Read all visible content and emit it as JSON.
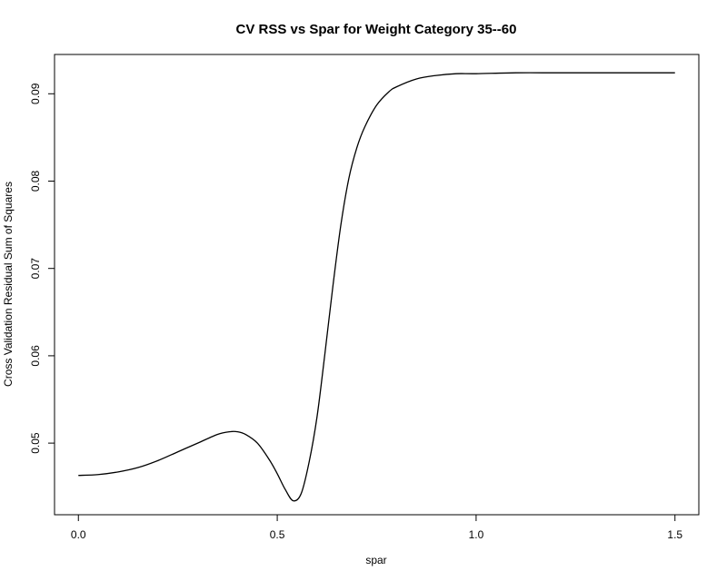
{
  "chart_data": {
    "type": "line",
    "title": "CV RSS vs Spar for Weight Category 35--60",
    "xlabel": "spar",
    "ylabel": "Cross Validation Residual Sum of Squares",
    "xlim": [
      -0.06,
      1.56
    ],
    "ylim": [
      0.0418,
      0.0945
    ],
    "grid": false,
    "xticks": [
      0.0,
      0.5,
      1.0,
      1.5
    ],
    "xtick_labels": [
      "0.0",
      "0.5",
      "1.0",
      "1.5"
    ],
    "yticks": [
      0.05,
      0.06,
      0.07,
      0.08,
      0.09
    ],
    "ytick_labels": [
      "0.05",
      "0.06",
      "0.07",
      "0.08",
      "0.09"
    ],
    "series": [
      {
        "x": [
          0.0,
          0.05,
          0.1,
          0.15,
          0.2,
          0.25,
          0.3,
          0.35,
          0.38,
          0.4,
          0.42,
          0.45,
          0.48,
          0.5,
          0.52,
          0.54,
          0.56,
          0.58,
          0.6,
          0.62,
          0.64,
          0.66,
          0.68,
          0.7,
          0.72,
          0.75,
          0.78,
          0.8,
          0.85,
          0.9,
          0.95,
          1.0,
          1.1,
          1.2,
          1.3,
          1.4,
          1.5
        ],
        "y": [
          0.0463,
          0.0464,
          0.0467,
          0.0472,
          0.048,
          0.049,
          0.05,
          0.051,
          0.0513,
          0.0513,
          0.051,
          0.05,
          0.0481,
          0.0465,
          0.0447,
          0.0434,
          0.0442,
          0.0478,
          0.053,
          0.0603,
          0.068,
          0.075,
          0.0803,
          0.0838,
          0.0862,
          0.0887,
          0.0902,
          0.0908,
          0.0917,
          0.0921,
          0.0923,
          0.0923,
          0.0924,
          0.0924,
          0.0924,
          0.0924,
          0.0924
        ]
      }
    ]
  }
}
